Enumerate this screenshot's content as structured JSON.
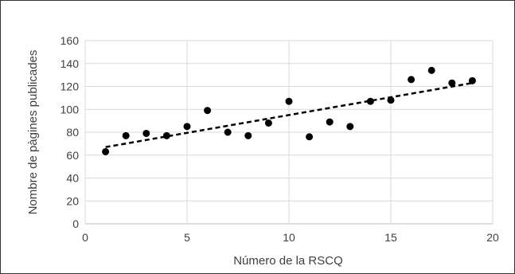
{
  "chart_data": {
    "type": "scatter",
    "xlabel": "Número de la RSCQ",
    "ylabel": "Nombre de pàgines publicades",
    "xlim": [
      0,
      20
    ],
    "ylim": [
      0,
      160
    ],
    "xticks": [
      0,
      5,
      10,
      15,
      20
    ],
    "yticks": [
      0,
      20,
      40,
      60,
      80,
      100,
      120,
      140,
      160
    ],
    "xtick_labels": [
      "0",
      "5",
      "10",
      "15",
      "20"
    ],
    "ytick_labels": [
      "0",
      "20",
      "40",
      "60",
      "80",
      "100",
      "120",
      "140",
      "160"
    ],
    "grid": true,
    "legend": "none",
    "series": [
      {
        "x": [
          1,
          2,
          3,
          4,
          5,
          6,
          7,
          8,
          9,
          10,
          11,
          12,
          13,
          14,
          15,
          16,
          17,
          18,
          19
        ],
        "y": [
          63,
          77,
          79,
          77,
          85,
          99,
          80,
          77,
          88,
          107,
          76,
          89,
          85,
          107,
          108,
          126,
          134,
          123,
          125
        ],
        "marker_color": "#000000"
      }
    ],
    "trendline": {
      "type": "linear",
      "style": "dashed",
      "color": "#000000",
      "x": [
        1,
        19
      ],
      "y": [
        67,
        123
      ]
    }
  }
}
